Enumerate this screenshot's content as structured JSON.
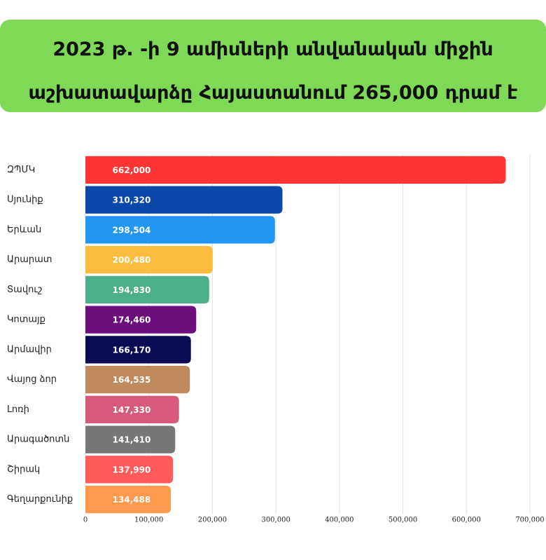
{
  "chart_data": {
    "type": "bar",
    "orientation": "horizontal",
    "title": "2023 թ. -ի 9 ամիսների անվանական միջին աշխատավարձը Հայաստանում 265,000 դրամ է",
    "categories": [
      "ԶՊՄԿ",
      "Սյունիք",
      "Երևան",
      "Արարատ",
      "Տավուշ",
      "Կոտայք",
      "Արմավիր",
      "Վայոց ձոր",
      "Լոռի",
      "Արագածոտն",
      "Շիրակ",
      "Գեղարքունիք"
    ],
    "values": [
      662000,
      310320,
      298504,
      200480,
      194830,
      174460,
      166170,
      164535,
      147330,
      141410,
      137990,
      134488
    ],
    "value_labels": [
      "662,000",
      "310,320",
      "298,504",
      "200,480",
      "194,830",
      "174,460",
      "166,170",
      "164,535",
      "147,330",
      "141,410",
      "137,990",
      "134,488"
    ],
    "colors": [
      "#ff3535",
      "#0b47a8",
      "#2196f3",
      "#fbbd3e",
      "#4dae8a",
      "#6c0f7c",
      "#0c0c56",
      "#c08a5c",
      "#d65a7c",
      "#777777",
      "#ff5b5b",
      "#ff9a4c"
    ],
    "xlim": [
      0,
      700000
    ],
    "xticks": [
      0,
      {
        "value": 100000,
        "label": "100,000"
      },
      {
        "value": 200000,
        "label": "200,000"
      },
      {
        "value": 300000,
        "label": "300,000"
      },
      {
        "value": 400000,
        "label": "400,000"
      },
      {
        "value": 500000,
        "label": "500,000"
      },
      {
        "value": 600000,
        "label": "600,000"
      },
      {
        "value": 700000,
        "label": "700,000"
      }
    ],
    "grid": true
  }
}
